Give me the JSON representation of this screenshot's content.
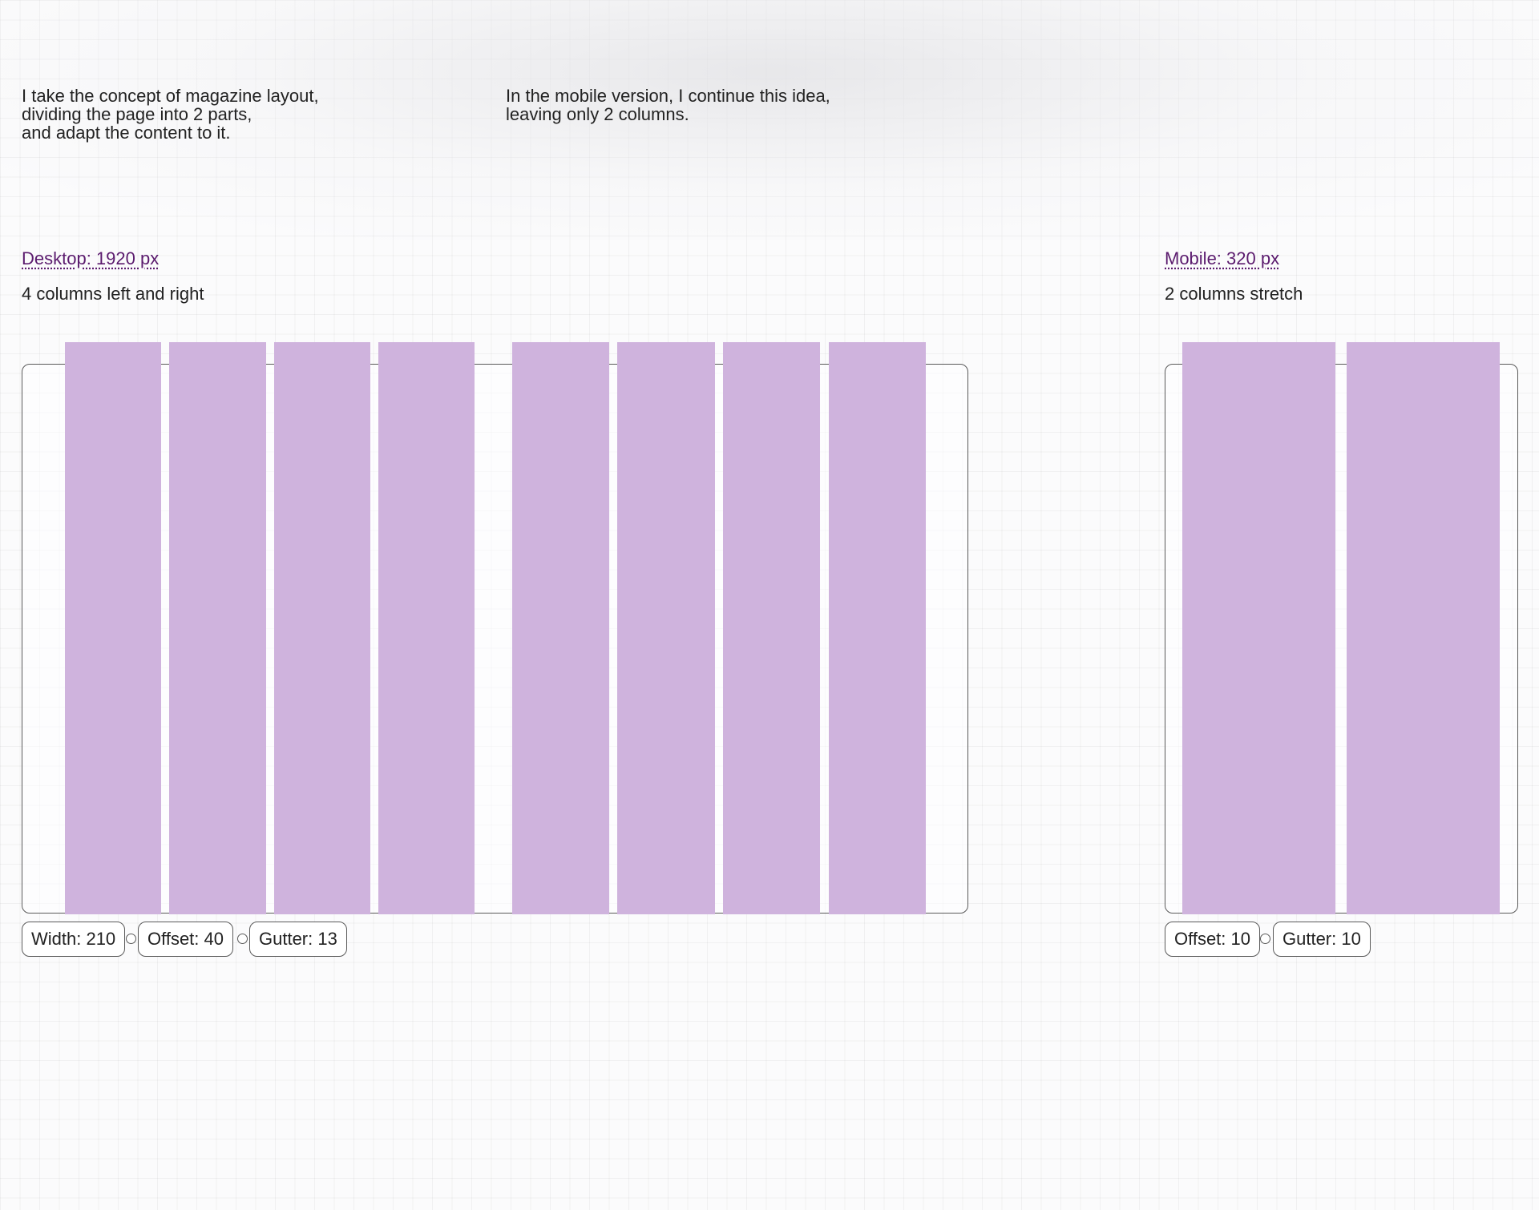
{
  "intro": {
    "left": "I take the concept of magazine layout,\ndividing the page into 2 parts,\nand adapt the content to it.",
    "right": "In the mobile version, I continue this idea,\nleaving only 2 columns."
  },
  "desktop": {
    "title": "Desktop: 1920 px",
    "note": "4 columns left and right",
    "columns_per_side": 4,
    "specs": {
      "width": "Width: 210",
      "offset": "Offset: 40",
      "gutter": "Gutter: 13"
    }
  },
  "mobile": {
    "title": "Mobile: 320 px",
    "note": "2 columns stretch",
    "columns": 2,
    "specs": {
      "offset": "Offset: 10",
      "gutter": "Gutter: 10"
    }
  },
  "colors": {
    "column": "#cfb3dd",
    "link": "#5b1b6e",
    "border": "#5a5a5a"
  }
}
